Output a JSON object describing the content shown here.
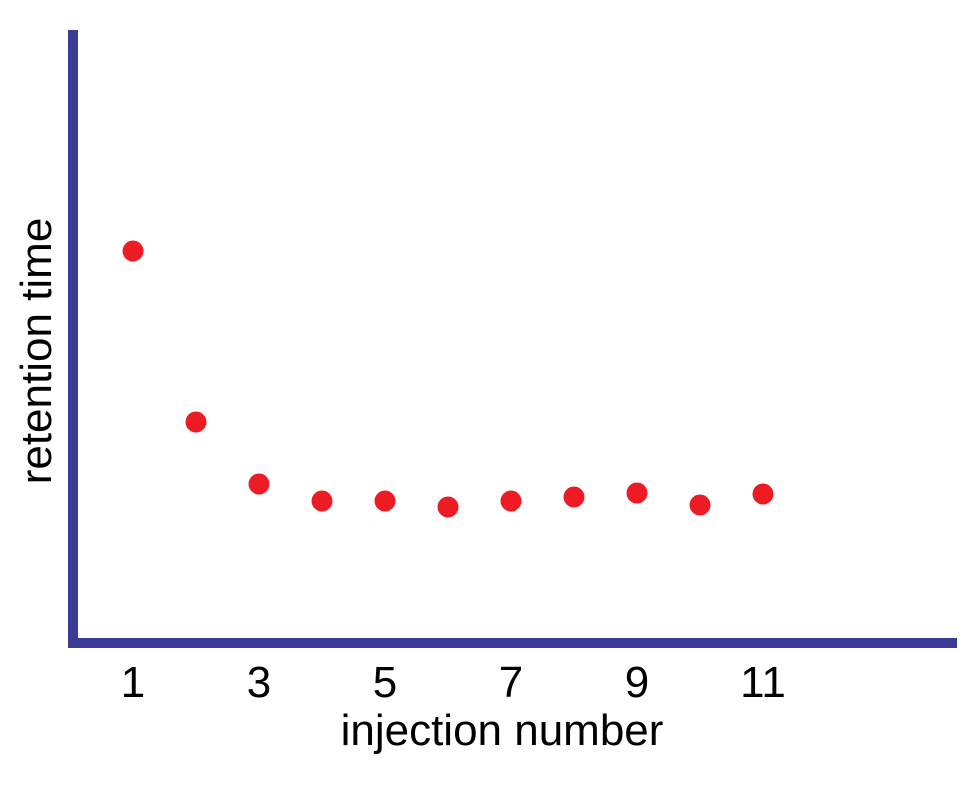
{
  "chart_data": {
    "type": "scatter",
    "title": "",
    "xlabel": "injection number",
    "ylabel": "retention time",
    "x_ticks": [
      "1",
      "3",
      "5",
      "7",
      "9",
      "11"
    ],
    "x_tick_values": [
      1,
      3,
      5,
      7,
      9,
      11
    ],
    "xlim": [
      0,
      14
    ],
    "ylim": [
      0,
      1
    ],
    "grid": false,
    "legend": "none",
    "y_axis_note": "y-axis has no tick marks or numeric labels; y values are relative fractions of axis height estimated from the plot",
    "marker": "filled-circle",
    "marker_color": "#ED1C24",
    "axis_color": "#3A3B94",
    "text_color": "#000000",
    "background_color": "#FFFFFF",
    "points": [
      {
        "x": 1,
        "y": 0.64
      },
      {
        "x": 2,
        "y": 0.36
      },
      {
        "x": 3,
        "y": 0.26
      },
      {
        "x": 4,
        "y": 0.232
      },
      {
        "x": 5,
        "y": 0.232
      },
      {
        "x": 6,
        "y": 0.222
      },
      {
        "x": 7,
        "y": 0.232
      },
      {
        "x": 8,
        "y": 0.238
      },
      {
        "x": 9,
        "y": 0.245
      },
      {
        "x": 10,
        "y": 0.225
      },
      {
        "x": 11,
        "y": 0.243
      }
    ]
  }
}
